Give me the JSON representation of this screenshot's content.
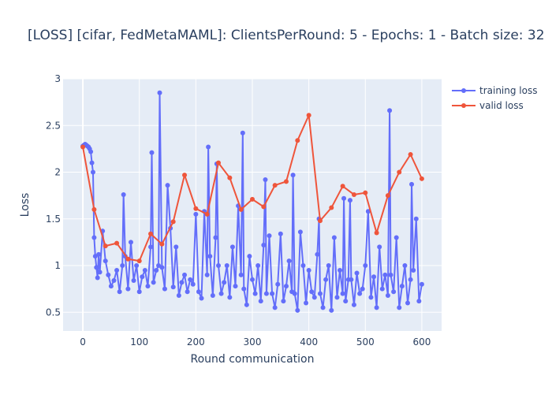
{
  "chart_data": {
    "type": "line",
    "title": "[LOSS] [cifar, FedMetaMAML]: ClientsPerRound: 5 - Epochs: 1 - Batch size: 32",
    "xlabel": "Round communication",
    "ylabel": "Loss",
    "xlim": [
      -35,
      635
    ],
    "ylim": [
      0.3,
      3.0
    ],
    "x_ticks": [
      0,
      100,
      200,
      300,
      400,
      500,
      600
    ],
    "y_ticks": [
      0.5,
      1,
      1.5,
      2,
      2.5,
      3
    ],
    "grid": true,
    "legend_position": "top-right",
    "series": [
      {
        "name": "training loss",
        "color": "#636efa",
        "x": [
          0,
          2,
          4,
          6,
          8,
          10,
          12,
          14,
          16,
          18,
          20,
          22,
          24,
          26,
          28,
          30,
          35,
          40,
          45,
          50,
          55,
          60,
          65,
          70,
          72,
          75,
          80,
          85,
          90,
          95,
          100,
          105,
          110,
          115,
          120,
          122,
          125,
          130,
          134,
          136,
          140,
          145,
          150,
          155,
          160,
          165,
          170,
          175,
          180,
          185,
          190,
          195,
          200,
          205,
          210,
          215,
          220,
          222,
          225,
          230,
          235,
          237,
          240,
          245,
          250,
          255,
          260,
          265,
          270,
          275,
          280,
          283,
          285,
          290,
          295,
          300,
          305,
          310,
          315,
          320,
          323,
          325,
          330,
          335,
          340,
          345,
          350,
          355,
          360,
          365,
          370,
          372,
          375,
          380,
          385,
          390,
          395,
          400,
          405,
          410,
          415,
          418,
          420,
          425,
          430,
          435,
          440,
          445,
          450,
          455,
          460,
          462,
          465,
          470,
          473,
          475,
          480,
          485,
          490,
          495,
          500,
          505,
          510,
          515,
          520,
          525,
          530,
          535,
          540,
          543,
          545,
          550,
          555,
          560,
          565,
          570,
          575,
          580,
          582,
          585,
          590,
          595,
          600
        ],
        "y": [
          2.28,
          2.29,
          2.3,
          2.29,
          2.28,
          2.27,
          2.25,
          2.22,
          2.1,
          2.0,
          1.3,
          1.1,
          0.98,
          0.87,
          1.12,
          0.93,
          1.37,
          1.05,
          0.9,
          0.78,
          0.84,
          0.95,
          0.72,
          1.0,
          1.76,
          1.1,
          0.75,
          1.25,
          0.84,
          1.0,
          0.72,
          0.88,
          0.95,
          0.78,
          1.2,
          2.21,
          0.82,
          0.95,
          1.0,
          2.85,
          0.98,
          0.75,
          1.86,
          1.4,
          0.77,
          1.2,
          0.68,
          0.82,
          0.9,
          0.72,
          0.85,
          0.8,
          1.55,
          0.72,
          0.65,
          1.58,
          0.9,
          2.27,
          1.1,
          0.68,
          1.3,
          2.09,
          1.0,
          0.7,
          0.82,
          1.0,
          0.66,
          1.2,
          0.78,
          1.64,
          0.9,
          2.42,
          0.75,
          0.58,
          1.1,
          0.85,
          0.7,
          1.0,
          0.62,
          1.22,
          1.92,
          0.7,
          1.32,
          0.7,
          0.55,
          0.8,
          1.34,
          0.62,
          0.78,
          1.05,
          0.72,
          1.97,
          0.7,
          0.52,
          1.36,
          1.0,
          0.6,
          0.95,
          0.72,
          0.66,
          1.12,
          1.5,
          0.7,
          0.55,
          0.85,
          1.0,
          0.52,
          1.3,
          0.66,
          0.95,
          0.7,
          1.72,
          0.62,
          0.85,
          1.7,
          0.85,
          0.58,
          0.92,
          0.7,
          0.75,
          1.0,
          1.58,
          0.66,
          0.88,
          0.55,
          1.2,
          0.75,
          0.9,
          0.68,
          2.66,
          0.9,
          0.72,
          1.3,
          0.55,
          0.78,
          1.0,
          0.6,
          0.85,
          1.87,
          0.95,
          1.5,
          0.62,
          0.8
        ]
      },
      {
        "name": "valid loss",
        "color": "#ef553b",
        "x": [
          0,
          20,
          40,
          60,
          80,
          100,
          120,
          140,
          160,
          180,
          200,
          220,
          240,
          260,
          280,
          300,
          320,
          340,
          360,
          380,
          400,
          420,
          440,
          460,
          480,
          500,
          520,
          540,
          560,
          580,
          600
        ],
        "y": [
          2.27,
          1.6,
          1.21,
          1.24,
          1.07,
          1.05,
          1.34,
          1.23,
          1.47,
          1.97,
          1.61,
          1.55,
          2.1,
          1.94,
          1.6,
          1.71,
          1.63,
          1.86,
          1.9,
          2.34,
          2.61,
          1.48,
          1.62,
          1.85,
          1.76,
          1.78,
          1.35,
          1.75,
          2.0,
          2.19,
          1.93
        ]
      }
    ]
  }
}
